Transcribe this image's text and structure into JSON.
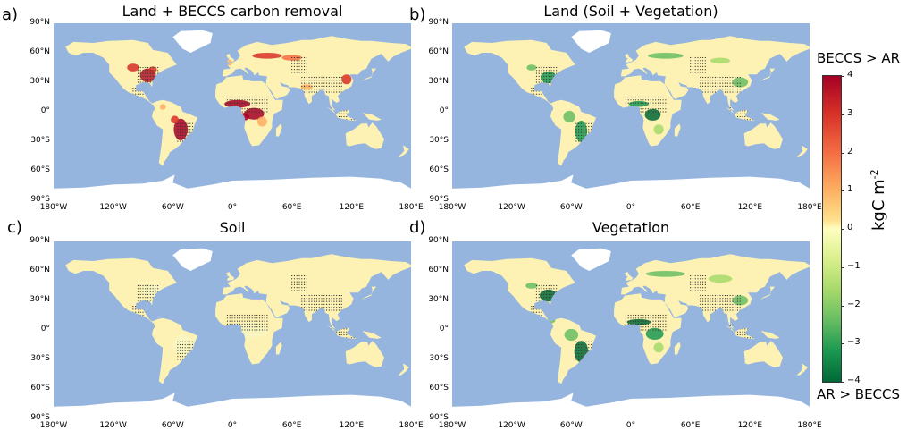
{
  "panels": [
    {
      "letter": "a)",
      "title": "Land + BECCS carbon removal",
      "style": "mixed"
    },
    {
      "letter": "b)",
      "title": "Land (Soil + Vegetation)",
      "style": "green"
    },
    {
      "letter": "c)",
      "title": "Soil",
      "style": "pale"
    },
    {
      "letter": "d)",
      "title": "Vegetation",
      "style": "green2"
    }
  ],
  "axes": {
    "lat_ticks": [
      "90°N",
      "60°N",
      "30°N",
      "0°",
      "30°S",
      "60°S",
      "90°S"
    ],
    "lon_ticks": [
      "180°W",
      "120°W",
      "60°W",
      "0°",
      "60°E",
      "120°E",
      "180°E"
    ]
  },
  "colorbar": {
    "top_label": "BECCS > AR",
    "bottom_label": "AR > BECCS",
    "unit_label": "kgC m",
    "unit_exp": "-2",
    "ticks": [
      "4",
      "3",
      "2",
      "1",
      "0",
      "−1",
      "−2",
      "−3",
      "−4"
    ],
    "range": [
      -4,
      4
    ],
    "colormap": "RdYlGn",
    "colors": {
      "high": "#a50026",
      "mid": "#ffffbf",
      "low": "#006837"
    }
  },
  "colors": {
    "ocean": "#95b5df",
    "land": "#fdf2b3",
    "antarctica": "#ffffff"
  }
}
